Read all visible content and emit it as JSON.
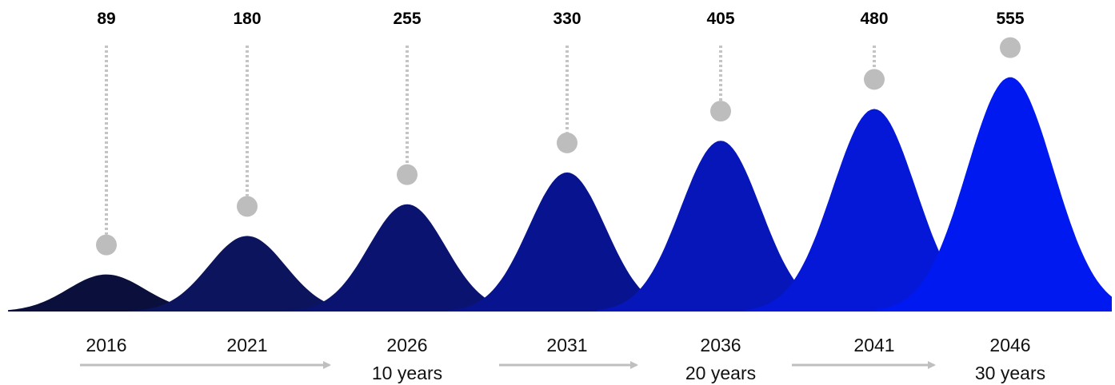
{
  "chart_data": {
    "type": "area",
    "categories": [
      "2016",
      "2021",
      "2026",
      "2031",
      "2036",
      "2041",
      "2046"
    ],
    "values": [
      89,
      180,
      255,
      330,
      405,
      480,
      555
    ],
    "title": "",
    "xlabel": "",
    "ylabel": "",
    "ylim": [
      0,
      600
    ],
    "grid": false,
    "legend": "none",
    "span_labels": [
      {
        "after_category": "2026",
        "text": "10 years"
      },
      {
        "after_category": "2036",
        "text": "20 years"
      },
      {
        "after_category": "2046",
        "text": "30 years"
      }
    ],
    "colors": {
      "peaks": [
        "#0a0f3c",
        "#0b145c",
        "#0a1470",
        "#08148f",
        "#0716b8",
        "#0518d8",
        "#0019f0"
      ],
      "marker": "#bdbdbd",
      "leader": "#c4c4c4",
      "arrow": "#bfbfbf",
      "value_text": "#000000",
      "year_text": "#111111"
    }
  }
}
